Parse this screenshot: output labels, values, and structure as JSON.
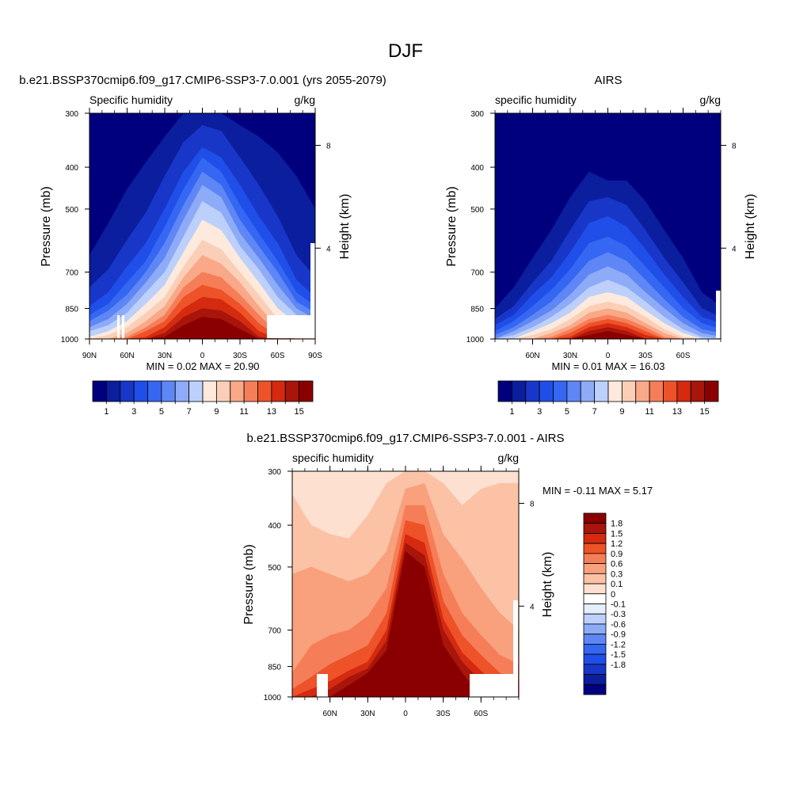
{
  "figure": {
    "title": "DJF"
  },
  "colors": {
    "abs_palette": [
      "#00007f",
      "#0a1e9e",
      "#1837c8",
      "#1f4fe8",
      "#3567f2",
      "#5e86f5",
      "#8eabf8",
      "#bcd0fb",
      "#fdeadc",
      "#fbcfb7",
      "#f9a888",
      "#f57e58",
      "#ee5228",
      "#d32a10",
      "#a8150a",
      "#8a0000"
    ],
    "diff_palette": [
      "#00007f",
      "#0a1e9e",
      "#1837c8",
      "#1f4fe8",
      "#3567f2",
      "#5e86f5",
      "#8eabf8",
      "#bcd0fb",
      "#e5eefc",
      "#ffffff",
      "#fde0cf",
      "#fbc2a6",
      "#f9a07c",
      "#f57e58",
      "#ee5228",
      "#d32a10",
      "#a8150a",
      "#8a0000"
    ]
  },
  "panels": {
    "model": {
      "title": "b.e21.BSSP370cmip6.f09_g17.CMIP6-SSP3-7.0.001 (yrs 2055-2079)",
      "left_label": "Specific humidity",
      "right_label": "g/kg",
      "ylabel": "Pressure (mb)",
      "y2label": "Height (km)",
      "stats": "MIN =   0.02  MAX =  20.90"
    },
    "airs": {
      "title": "AIRS",
      "left_label": "specific humidity",
      "right_label": "g/kg",
      "ylabel": "Pressure (mb)",
      "y2label": "Height (km)",
      "stats": "MIN =   0.01  MAX =  16.03"
    },
    "diff": {
      "title": "b.e21.BSSP370cmip6.f09_g17.CMIP6-SSP3-7.0.001 - AIRS",
      "left_label": "specific humidity",
      "right_label": "g/kg",
      "ylabel": "Pressure (mb)",
      "y2label": "Height (km)",
      "stats": "MIN =  -0.11  MAX =   5.17"
    }
  },
  "chart_data": [
    {
      "type": "heatmap",
      "name": "model",
      "x_ticks": [
        "90N",
        "60N",
        "30N",
        "0",
        "30S",
        "60S",
        "90S"
      ],
      "y_ticks": [
        "300",
        "400",
        "500",
        "700",
        "850",
        "1000"
      ],
      "y2_ticks": [
        "8",
        "4"
      ],
      "colorbar_levels": [
        1,
        2,
        3,
        4,
        5,
        6,
        7,
        8,
        9,
        10,
        11,
        12,
        13,
        14,
        15
      ],
      "colorbar_labels": [
        "1",
        "3",
        "5",
        "7",
        "9",
        "11",
        "13",
        "15"
      ],
      "min": 0.02,
      "max": 20.9,
      "units": "g/kg",
      "contour_fill": {
        "x_lat": [
          -90,
          -75,
          -60,
          -45,
          -30,
          -15,
          0,
          15,
          30,
          45,
          60,
          75,
          90
        ],
        "top_pressure_of_level": [
          [
            1000,
            1000,
            1000,
            1000,
            1000,
            1000,
            1000,
            1000,
            1000,
            1000,
            1000,
            1000,
            1000
          ],
          [
            640,
            540,
            450,
            390,
            340,
            300,
            300,
            300,
            320,
            340,
            370,
            420,
            500
          ],
          [
            760,
            690,
            590,
            510,
            420,
            350,
            320,
            330,
            380,
            440,
            520,
            640,
            720
          ],
          [
            840,
            780,
            680,
            600,
            500,
            410,
            360,
            380,
            440,
            520,
            600,
            730,
            800
          ],
          [
            880,
            830,
            740,
            660,
            550,
            450,
            380,
            410,
            490,
            570,
            660,
            780,
            840
          ],
          [
            910,
            860,
            790,
            700,
            600,
            490,
            410,
            440,
            530,
            610,
            700,
            820,
            870
          ],
          [
            940,
            900,
            830,
            740,
            650,
            530,
            440,
            470,
            570,
            650,
            750,
            850,
            900
          ],
          [
            960,
            930,
            870,
            780,
            700,
            580,
            480,
            510,
            610,
            690,
            800,
            880,
            930
          ],
          [
            990,
            960,
            910,
            830,
            750,
            630,
            530,
            560,
            650,
            740,
            850,
            920,
            960
          ],
          [
            1000,
            980,
            940,
            870,
            800,
            680,
            590,
            620,
            700,
            790,
            900,
            950,
            990
          ],
          [
            1000,
            1000,
            970,
            910,
            840,
            720,
            640,
            670,
            740,
            840,
            940,
            980,
            1000
          ],
          [
            1000,
            1000,
            990,
            940,
            880,
            760,
            700,
            720,
            790,
            880,
            970,
            1000,
            1000
          ],
          [
            1000,
            1000,
            1000,
            960,
            910,
            800,
            750,
            770,
            830,
            920,
            990,
            1000,
            1000
          ],
          [
            1000,
            1000,
            1000,
            990,
            940,
            850,
            800,
            810,
            870,
            960,
            1000,
            1000,
            1000
          ],
          [
            1000,
            1000,
            1000,
            1000,
            970,
            890,
            850,
            860,
            910,
            990,
            1000,
            1000,
            1000
          ],
          [
            1000,
            1000,
            1000,
            1000,
            990,
            930,
            890,
            900,
            950,
            1000,
            1000,
            1000,
            1000
          ]
        ]
      }
    },
    {
      "type": "heatmap",
      "name": "airs",
      "x_ticks": [
        "60N",
        "30N",
        "0",
        "30S",
        "60S"
      ],
      "y_ticks": [
        "300",
        "400",
        "500",
        "700",
        "850",
        "1000"
      ],
      "y2_ticks": [
        "8",
        "4"
      ],
      "colorbar_levels": [
        1,
        2,
        3,
        4,
        5,
        6,
        7,
        8,
        9,
        10,
        11,
        12,
        13,
        14,
        15
      ],
      "colorbar_labels": [
        "1",
        "3",
        "5",
        "7",
        "9",
        "11",
        "13",
        "15"
      ],
      "min": 0.01,
      "max": 16.03,
      "units": "g/kg",
      "contour_fill": {
        "x_lat": [
          -90,
          -75,
          -60,
          -45,
          -30,
          -15,
          0,
          15,
          30,
          45,
          60,
          75,
          90
        ],
        "top_pressure_of_level": [
          [
            1000,
            1000,
            1000,
            1000,
            1000,
            1000,
            1000,
            1000,
            1000,
            1000,
            1000,
            1000,
            1000
          ],
          [
            850,
            760,
            650,
            560,
            470,
            410,
            430,
            430,
            480,
            560,
            650,
            780,
            840
          ],
          [
            900,
            840,
            740,
            660,
            560,
            480,
            470,
            490,
            560,
            650,
            740,
            850,
            890
          ],
          [
            930,
            880,
            790,
            720,
            630,
            540,
            520,
            550,
            620,
            710,
            800,
            890,
            920
          ],
          [
            960,
            910,
            840,
            770,
            690,
            600,
            580,
            610,
            680,
            760,
            850,
            920,
            950
          ],
          [
            980,
            940,
            880,
            820,
            740,
            660,
            630,
            660,
            730,
            810,
            890,
            950,
            970
          ],
          [
            1000,
            960,
            910,
            860,
            790,
            710,
            680,
            710,
            780,
            850,
            920,
            970,
            990
          ],
          [
            1000,
            980,
            940,
            890,
            830,
            760,
            730,
            760,
            820,
            890,
            950,
            990,
            1000
          ],
          [
            1000,
            1000,
            960,
            920,
            870,
            800,
            780,
            800,
            860,
            920,
            970,
            1000,
            1000
          ],
          [
            1000,
            1000,
            980,
            950,
            900,
            840,
            820,
            840,
            890,
            950,
            990,
            1000,
            1000
          ],
          [
            1000,
            1000,
            1000,
            970,
            930,
            870,
            850,
            870,
            920,
            970,
            1000,
            1000,
            1000
          ],
          [
            1000,
            1000,
            1000,
            990,
            950,
            900,
            880,
            900,
            940,
            990,
            1000,
            1000,
            1000
          ],
          [
            1000,
            1000,
            1000,
            1000,
            970,
            920,
            900,
            920,
            960,
            1000,
            1000,
            1000,
            1000
          ],
          [
            1000,
            1000,
            1000,
            1000,
            990,
            940,
            920,
            940,
            980,
            1000,
            1000,
            1000,
            1000
          ],
          [
            1000,
            1000,
            1000,
            1000,
            1000,
            960,
            940,
            960,
            1000,
            1000,
            1000,
            1000,
            1000
          ],
          [
            1000,
            1000,
            1000,
            1000,
            1000,
            980,
            960,
            980,
            1000,
            1000,
            1000,
            1000,
            1000
          ]
        ]
      }
    },
    {
      "type": "heatmap",
      "name": "diff",
      "x_ticks": [
        "60N",
        "30N",
        "0",
        "30S",
        "60S"
      ],
      "y_ticks": [
        "300",
        "400",
        "500",
        "700",
        "850",
        "1000"
      ],
      "y2_ticks": [
        "8",
        "4"
      ],
      "colorbar_levels": [
        -1.8,
        -1.5,
        -1.2,
        -0.9,
        -0.6,
        -0.3,
        -0.1,
        0,
        0.1,
        0.3,
        0.6,
        0.9,
        1.2,
        1.5,
        1.8
      ],
      "colorbar_labels": [
        "1.8",
        "1.5",
        "1.2",
        "0.9",
        "0.6",
        "0.3",
        "0.1",
        "0",
        "-0.1",
        "-0.3",
        "-0.6",
        "-0.9",
        "-1.2",
        "-1.5",
        "-1.8"
      ],
      "min": -0.11,
      "max": 5.17,
      "units": "g/kg",
      "contour_fill": {
        "x_lat": [
          -90,
          -75,
          -60,
          -45,
          -30,
          -15,
          0,
          15,
          30,
          45,
          60,
          75,
          90
        ],
        "base_level_index": 10,
        "top_pressure_of_level": [
          [
            300,
            300,
            300,
            300,
            300,
            300,
            300,
            300,
            300,
            300,
            300,
            300,
            300
          ],
          [
            340,
            400,
            420,
            430,
            380,
            320,
            300,
            300,
            320,
            360,
            330,
            320,
            320
          ],
          [
            520,
            500,
            520,
            540,
            520,
            460,
            330,
            320,
            420,
            480,
            560,
            640,
            700
          ],
          [
            880,
            760,
            720,
            700,
            650,
            560,
            360,
            360,
            520,
            640,
            720,
            800,
            840
          ],
          [
            960,
            900,
            840,
            800,
            760,
            640,
            390,
            400,
            600,
            720,
            800,
            880,
            920
          ],
          [
            1000,
            960,
            920,
            870,
            830,
            700,
            420,
            440,
            660,
            790,
            870,
            960,
            1000
          ],
          [
            1000,
            1000,
            960,
            900,
            860,
            740,
            440,
            470,
            700,
            830,
            920,
            1000,
            1000
          ],
          [
            1000,
            1000,
            1000,
            940,
            880,
            780,
            460,
            500,
            760,
            880,
            1000,
            1000,
            1000
          ]
        ]
      }
    }
  ]
}
